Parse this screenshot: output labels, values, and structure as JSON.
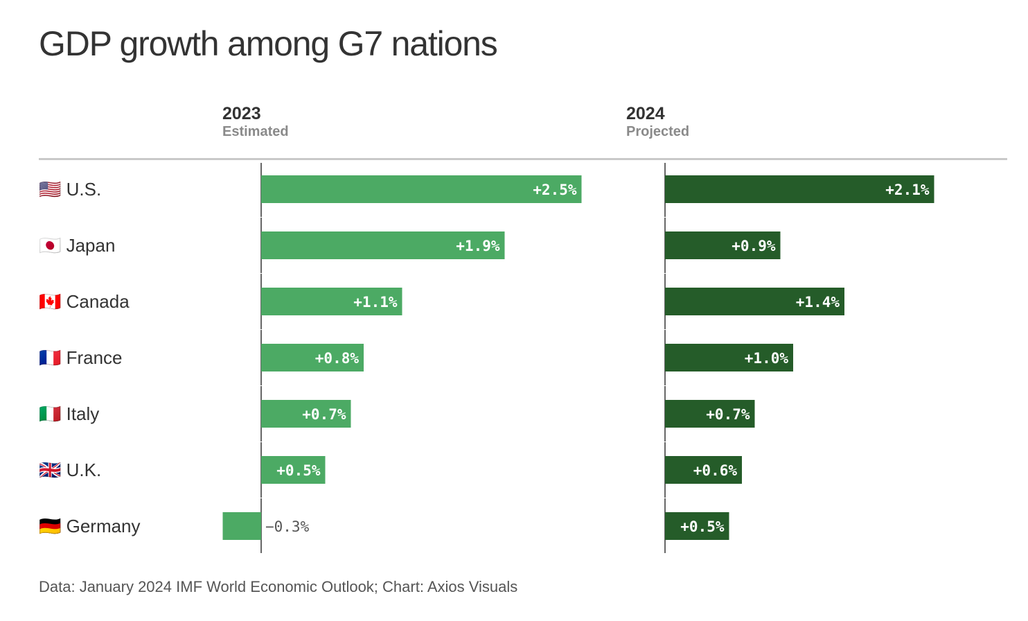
{
  "title": "GDP growth among G7 nations",
  "footer": "Data: January 2024 IMF World Economic Outlook; Chart: Axios Visuals",
  "chart_data": {
    "type": "bar",
    "orientation": "horizontal",
    "title": "GDP growth among G7 nations",
    "categories": [
      "U.S.",
      "Japan",
      "Canada",
      "France",
      "Italy",
      "U.K.",
      "Germany"
    ],
    "flags": [
      "🇺🇸",
      "🇯🇵",
      "🇨🇦",
      "🇫🇷",
      "🇮🇹",
      "🇬🇧",
      "🇩🇪"
    ],
    "series": [
      {
        "name": "2023",
        "subtitle": "Estimated",
        "color": "#4caa64",
        "values": [
          2.5,
          1.9,
          1.1,
          0.8,
          0.7,
          0.5,
          -0.3
        ],
        "labels": [
          "+2.5%",
          "+1.9%",
          "+1.1%",
          "+0.8%",
          "+0.7%",
          "+0.5%",
          "−0.3%"
        ]
      },
      {
        "name": "2024",
        "subtitle": "Projected",
        "color": "#255c29",
        "values": [
          2.1,
          0.9,
          1.4,
          1.0,
          0.7,
          0.6,
          0.5
        ],
        "labels": [
          "+2.1%",
          "+0.9%",
          "+1.4%",
          "+1.0%",
          "+0.7%",
          "+0.6%",
          "+0.5%"
        ]
      }
    ],
    "axis_color": "#333333",
    "grid": false
  }
}
